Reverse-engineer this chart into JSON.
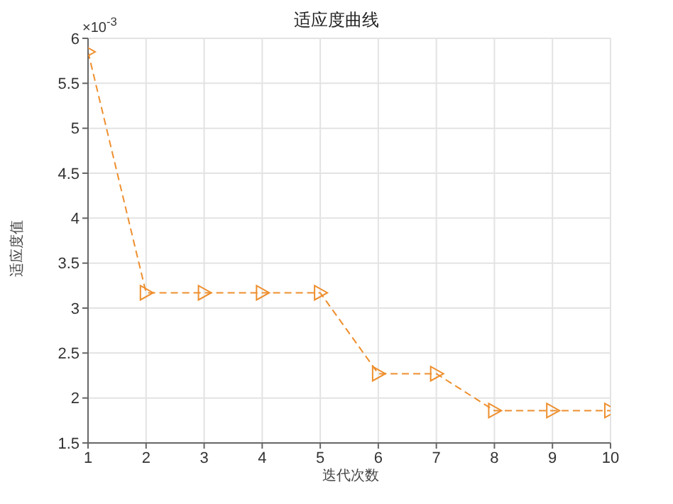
{
  "chart_data": {
    "type": "line",
    "title": "适应度曲线",
    "xlabel": "迭代次数",
    "ylabel": "适应度值",
    "annotations": [
      "×10$^{-3}$"
    ],
    "x": [
      1,
      2,
      3,
      4,
      5,
      6,
      7,
      8,
      9,
      10
    ],
    "series": [
      {
        "color": "#ee8f2e",
        "values": [
          5.85,
          3.17,
          3.17,
          3.17,
          3.17,
          2.27,
          2.27,
          1.86,
          1.86,
          1.86
        ]
      }
    ],
    "xlim": [
      1,
      10
    ],
    "xticks": [
      1,
      2,
      3,
      4,
      5,
      6,
      7,
      8,
      9,
      10
    ],
    "ylim": [
      1.5,
      6
    ],
    "yticks": [
      1.5,
      2,
      2.5,
      3,
      3.5,
      4,
      4.5,
      5,
      5.5,
      6
    ],
    "grid": true,
    "marker": "triangle",
    "line_style": "dashed"
  }
}
